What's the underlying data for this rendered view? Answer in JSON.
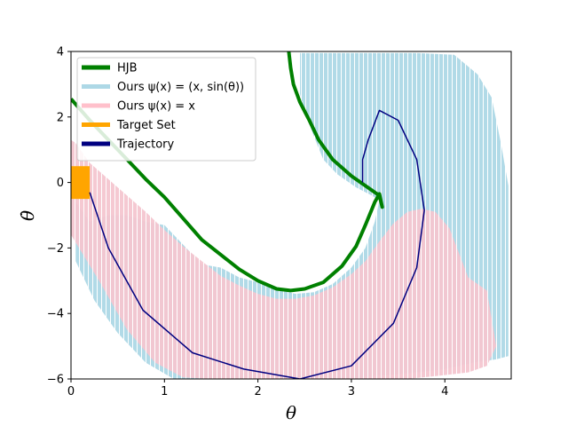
{
  "chart_data": {
    "type": "line",
    "xlabel": "θ",
    "ylabel": "θ̇",
    "xlim": [
      0,
      4.71
    ],
    "ylim": [
      -6,
      4
    ],
    "xticks": [
      "0",
      "1",
      "2",
      "3",
      "4"
    ],
    "yticks": [
      "−6",
      "−4",
      "−2",
      "0",
      "2",
      "4"
    ],
    "grid": false,
    "legend_position": "upper-left",
    "legend": [
      {
        "label": "HJB",
        "color": "#008000"
      },
      {
        "label": "Ours ψ(x) = (x, sin(θ))",
        "color": "#add8e6"
      },
      {
        "label": "Ours ψ(x) = x",
        "color": "#ffc0cb"
      },
      {
        "label": "Target Set",
        "color": "#ffa500"
      },
      {
        "label": "Trajectory",
        "color": "#000080"
      }
    ],
    "series": [
      {
        "name": "HJB",
        "color": "#008000",
        "x": [
          0,
          0.2,
          0.4,
          0.6,
          0.8,
          1.0,
          1.2,
          1.4,
          1.6,
          1.8,
          2.0,
          2.2,
          2.35,
          2.5,
          2.7,
          2.9,
          3.05,
          3.15,
          3.25,
          3.3,
          3.33,
          3.3,
          3.2,
          3.0,
          2.8,
          2.65,
          2.55,
          2.45,
          2.38,
          2.35,
          2.33
        ],
        "y": [
          2.55,
          1.9,
          1.3,
          0.7,
          0.1,
          -0.45,
          -1.1,
          -1.75,
          -2.2,
          -2.65,
          -3.0,
          -3.25,
          -3.3,
          -3.25,
          -3.05,
          -2.55,
          -1.95,
          -1.3,
          -0.6,
          -0.35,
          -0.75,
          -0.4,
          -0.2,
          0.2,
          0.7,
          1.3,
          1.9,
          2.45,
          3.0,
          3.5,
          4.0
        ]
      },
      {
        "name": "Trajectory",
        "color": "#000080",
        "x": [
          0.2,
          0.4,
          0.77,
          1.3,
          1.85,
          2.45,
          3.0,
          3.45,
          3.7,
          3.78,
          3.7,
          3.5,
          3.3,
          3.18,
          3.12,
          3.12
        ],
        "y": [
          -0.3,
          -2.0,
          -3.9,
          -5.2,
          -5.7,
          -6.0,
          -5.6,
          -4.3,
          -2.6,
          -0.85,
          0.7,
          1.9,
          2.2,
          1.3,
          0.7,
          0.0
        ]
      }
    ],
    "regions": [
      {
        "name": "Ours ψ(x) = x",
        "color": "#ffc0cb",
        "x": [
          0,
          0.05,
          0.2,
          0.4,
          0.6,
          0.8,
          1.0,
          1.2,
          1.4,
          1.6,
          1.8,
          2.0,
          2.2,
          2.4,
          2.6,
          2.8,
          3.0,
          3.15,
          3.3,
          3.45,
          3.6,
          3.75,
          3.9,
          4.05,
          4.25,
          4.45,
          4.55,
          4.45,
          4.25,
          3.95,
          3.6,
          3.3,
          3.0,
          2.7,
          2.4,
          2.1,
          1.8,
          1.5,
          1.2,
          0.9,
          0.6,
          0.3,
          0.0
        ],
        "y": [
          1.3,
          1.2,
          0.6,
          0.1,
          -0.4,
          -0.9,
          -1.45,
          -1.95,
          -2.4,
          -2.85,
          -3.15,
          -3.4,
          -3.55,
          -3.55,
          -3.45,
          -3.2,
          -2.8,
          -2.4,
          -1.8,
          -1.25,
          -0.9,
          -0.8,
          -0.9,
          -1.4,
          -2.9,
          -3.3,
          -5.0,
          -5.6,
          -5.8,
          -5.9,
          -6.0,
          -6.0,
          -6.0,
          -6.0,
          -6.0,
          -6.0,
          -6.0,
          -6.0,
          -5.95,
          -5.5,
          -4.5,
          -3.0,
          -1.6
        ]
      },
      {
        "name": "Ours ψ(x) = (x, sin(θ))",
        "color": "#add8e6",
        "x": [
          0.05,
          0.2,
          0.4,
          0.6,
          0.8,
          1.0,
          1.2,
          1.4,
          1.6,
          1.8,
          2.0,
          2.2,
          2.4,
          2.6,
          2.8,
          3.0,
          3.15,
          3.25,
          3.3,
          3.22,
          3.05,
          2.85,
          2.7,
          2.6,
          2.52,
          2.45,
          2.45,
          2.7,
          3.2,
          3.7,
          4.1,
          4.35,
          4.5,
          4.6,
          4.68,
          4.68,
          4.55,
          4.3,
          4.0,
          3.7,
          3.3,
          2.9,
          2.5,
          2.1,
          1.7,
          1.3,
          1.1,
          0.8,
          0.5,
          0.25,
          0.05
        ],
        "y": [
          -0.6,
          -1.2,
          -1.0,
          -1.0,
          -1.2,
          -1.3,
          -1.9,
          -2.5,
          -2.6,
          -2.9,
          -3.05,
          -3.25,
          -3.4,
          -3.35,
          -3.1,
          -2.6,
          -2.0,
          -1.2,
          -0.55,
          -0.4,
          -0.15,
          0.25,
          0.7,
          1.4,
          2.0,
          2.7,
          3.95,
          3.95,
          3.95,
          3.95,
          3.9,
          3.3,
          2.6,
          1.2,
          -0.1,
          -5.3,
          -5.4,
          -5.5,
          -5.7,
          -5.8,
          -5.9,
          -6.0,
          -6.0,
          -6.0,
          -6.0,
          -6.0,
          -6.0,
          -5.5,
          -4.6,
          -3.6,
          -2.4
        ]
      },
      {
        "name": "Target Set",
        "color": "#ffa500",
        "x": [
          0,
          0.2,
          0.2,
          0
        ],
        "y": [
          0.5,
          0.5,
          -0.5,
          -0.5
        ]
      }
    ]
  }
}
